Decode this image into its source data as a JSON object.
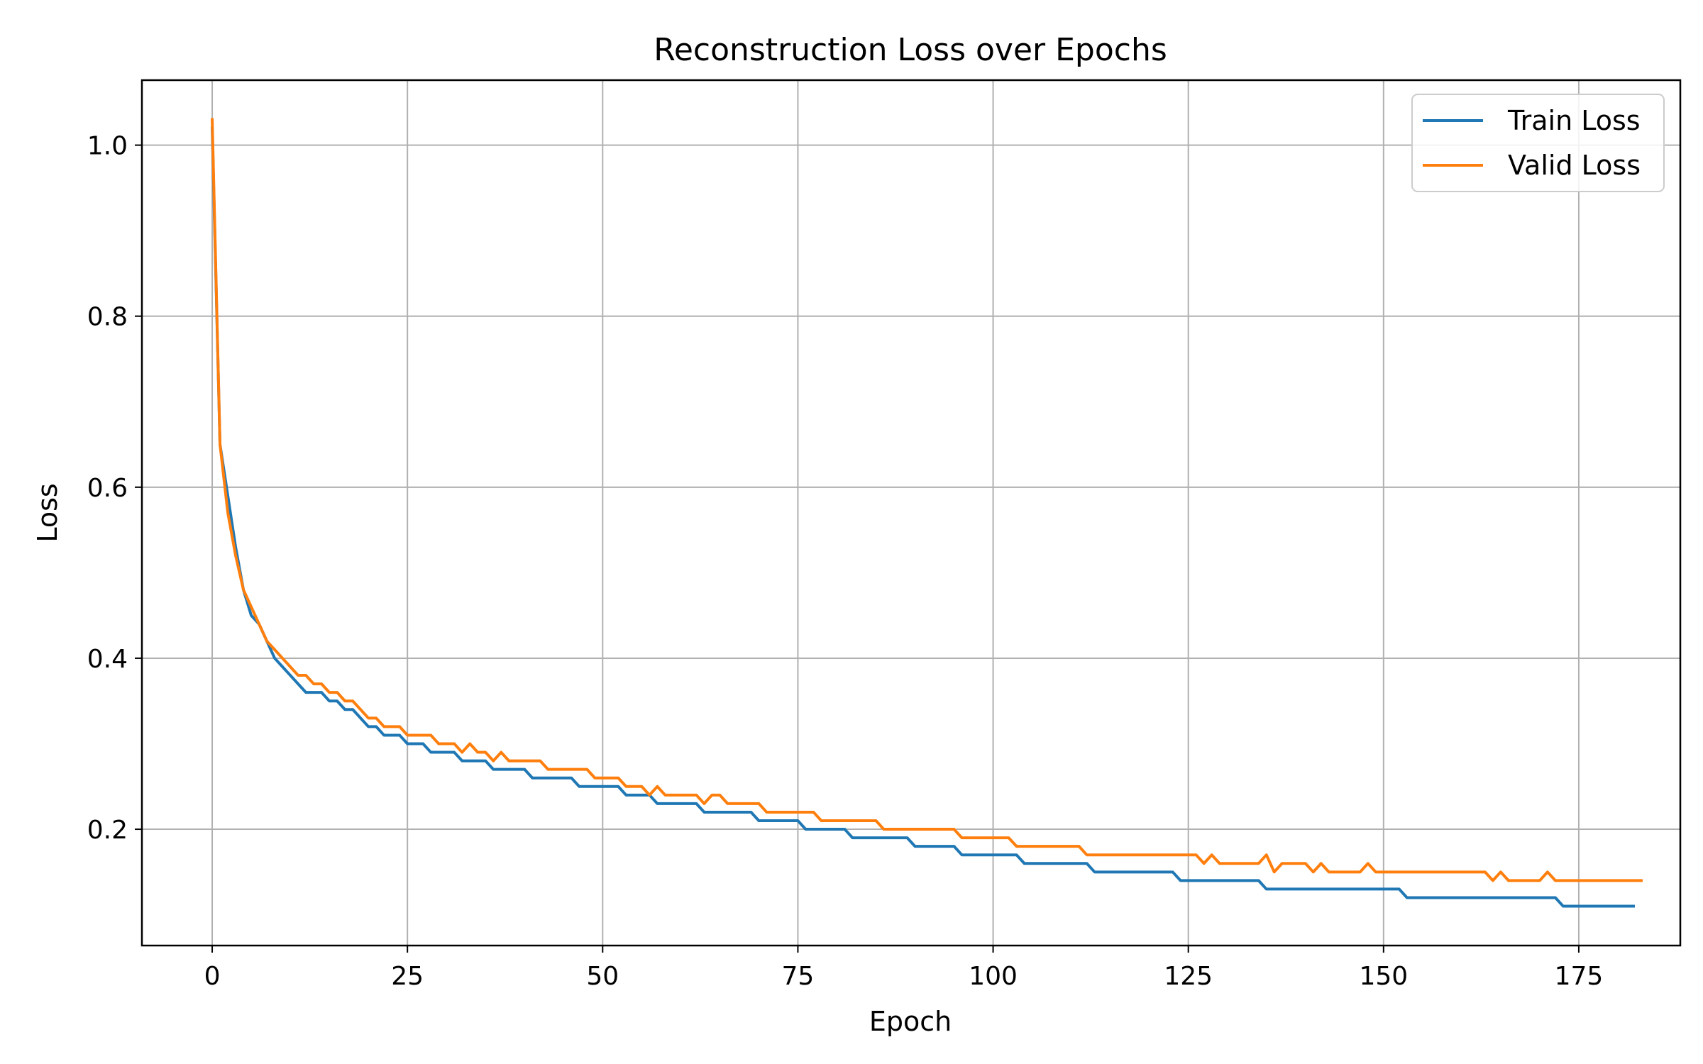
{
  "chart_data": {
    "type": "line",
    "title": "Reconstruction Loss over Epochs",
    "xlabel": "Epoch",
    "ylabel": "Loss",
    "xlim": [
      -9,
      188
    ],
    "ylim": [
      0.064,
      1.076
    ],
    "xticks": [
      0,
      25,
      50,
      75,
      100,
      125,
      150,
      175
    ],
    "yticks": [
      0.2,
      0.4,
      0.6,
      0.8,
      1.0
    ],
    "ytick_labels": [
      "0.2",
      "0.4",
      "0.6",
      "0.8",
      "1.0"
    ],
    "grid": true,
    "legend_position": "top-right",
    "colors": {
      "train": "#1f77b4",
      "valid": "#ff7f0e",
      "grid": "#b0b0b0"
    },
    "series": [
      {
        "name": "Train Loss",
        "color": "#1f77b4",
        "values": [
          1.02,
          0.65,
          0.59,
          0.53,
          0.48,
          0.45,
          0.44,
          0.42,
          0.4,
          0.39,
          0.38,
          0.37,
          0.36,
          0.36,
          0.36,
          0.35,
          0.35,
          0.34,
          0.34,
          0.33,
          0.32,
          0.32,
          0.31,
          0.31,
          0.31,
          0.3,
          0.3,
          0.3,
          0.29,
          0.29,
          0.29,
          0.29,
          0.28,
          0.28,
          0.28,
          0.28,
          0.27,
          0.27,
          0.27,
          0.27,
          0.27,
          0.26,
          0.26,
          0.26,
          0.26,
          0.26,
          0.26,
          0.25,
          0.25,
          0.25,
          0.25,
          0.25,
          0.25,
          0.24,
          0.24,
          0.24,
          0.24,
          0.23,
          0.23,
          0.23,
          0.23,
          0.23,
          0.23,
          0.22,
          0.22,
          0.22,
          0.22,
          0.22,
          0.22,
          0.22,
          0.21,
          0.21,
          0.21,
          0.21,
          0.21,
          0.21,
          0.2,
          0.2,
          0.2,
          0.2,
          0.2,
          0.2,
          0.19,
          0.19,
          0.19,
          0.19,
          0.19,
          0.19,
          0.19,
          0.19,
          0.18,
          0.18,
          0.18,
          0.18,
          0.18,
          0.18,
          0.17,
          0.17,
          0.17,
          0.17,
          0.17,
          0.17,
          0.17,
          0.17,
          0.16,
          0.16,
          0.16,
          0.16,
          0.16,
          0.16,
          0.16,
          0.16,
          0.16,
          0.15,
          0.15,
          0.15,
          0.15,
          0.15,
          0.15,
          0.15,
          0.15,
          0.15,
          0.15,
          0.15,
          0.14,
          0.14,
          0.14,
          0.14,
          0.14,
          0.14,
          0.14,
          0.14,
          0.14,
          0.14,
          0.14,
          0.13,
          0.13,
          0.13,
          0.13,
          0.13,
          0.13,
          0.13,
          0.13,
          0.13,
          0.13,
          0.13,
          0.13,
          0.13,
          0.13,
          0.13,
          0.13,
          0.13,
          0.13,
          0.12,
          0.12,
          0.12,
          0.12,
          0.12,
          0.12,
          0.12,
          0.12,
          0.12,
          0.12,
          0.12,
          0.12,
          0.12,
          0.12,
          0.12,
          0.12,
          0.12,
          0.12,
          0.12,
          0.12,
          0.11,
          0.11,
          0.11,
          0.11,
          0.11,
          0.11,
          0.11,
          0.11,
          0.11,
          0.11
        ]
      },
      {
        "name": "Valid Loss",
        "color": "#ff7f0e",
        "values": [
          1.03,
          0.65,
          0.57,
          0.52,
          0.48,
          0.46,
          0.44,
          0.42,
          0.41,
          0.4,
          0.39,
          0.38,
          0.38,
          0.37,
          0.37,
          0.36,
          0.36,
          0.35,
          0.35,
          0.34,
          0.33,
          0.33,
          0.32,
          0.32,
          0.32,
          0.31,
          0.31,
          0.31,
          0.31,
          0.3,
          0.3,
          0.3,
          0.29,
          0.3,
          0.29,
          0.29,
          0.28,
          0.29,
          0.28,
          0.28,
          0.28,
          0.28,
          0.28,
          0.27,
          0.27,
          0.27,
          0.27,
          0.27,
          0.27,
          0.26,
          0.26,
          0.26,
          0.26,
          0.25,
          0.25,
          0.25,
          0.24,
          0.25,
          0.24,
          0.24,
          0.24,
          0.24,
          0.24,
          0.23,
          0.24,
          0.24,
          0.23,
          0.23,
          0.23,
          0.23,
          0.23,
          0.22,
          0.22,
          0.22,
          0.22,
          0.22,
          0.22,
          0.22,
          0.21,
          0.21,
          0.21,
          0.21,
          0.21,
          0.21,
          0.21,
          0.21,
          0.2,
          0.2,
          0.2,
          0.2,
          0.2,
          0.2,
          0.2,
          0.2,
          0.2,
          0.2,
          0.19,
          0.19,
          0.19,
          0.19,
          0.19,
          0.19,
          0.19,
          0.18,
          0.18,
          0.18,
          0.18,
          0.18,
          0.18,
          0.18,
          0.18,
          0.18,
          0.17,
          0.17,
          0.17,
          0.17,
          0.17,
          0.17,
          0.17,
          0.17,
          0.17,
          0.17,
          0.17,
          0.17,
          0.17,
          0.17,
          0.17,
          0.16,
          0.17,
          0.16,
          0.16,
          0.16,
          0.16,
          0.16,
          0.16,
          0.17,
          0.15,
          0.16,
          0.16,
          0.16,
          0.16,
          0.15,
          0.16,
          0.15,
          0.15,
          0.15,
          0.15,
          0.15,
          0.16,
          0.15,
          0.15,
          0.15,
          0.15,
          0.15,
          0.15,
          0.15,
          0.15,
          0.15,
          0.15,
          0.15,
          0.15,
          0.15,
          0.15,
          0.15,
          0.14,
          0.15,
          0.14,
          0.14,
          0.14,
          0.14,
          0.14,
          0.15,
          0.14,
          0.14,
          0.14,
          0.14,
          0.14,
          0.14,
          0.14,
          0.14,
          0.14,
          0.14,
          0.14,
          0.14
        ]
      }
    ]
  }
}
